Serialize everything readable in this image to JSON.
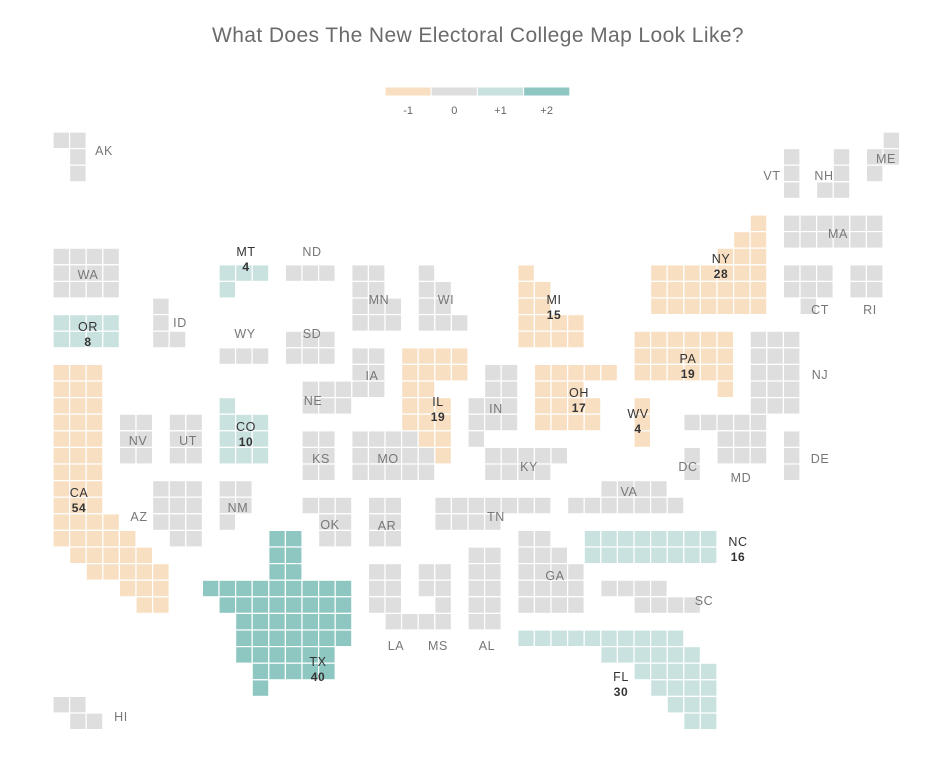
{
  "title": "What Does The New Electoral College Map Look Like?",
  "colors": {
    "-1": "#f9dfc2",
    "0": "#dedede",
    "1": "#c9e2e0",
    "2": "#8ec6c1"
  },
  "legend": [
    {
      "value": -1,
      "label": "-1"
    },
    {
      "value": 0,
      "label": "0"
    },
    {
      "value": 1,
      "label": "+1"
    },
    {
      "value": 2,
      "label": "+2"
    }
  ],
  "states": [
    {
      "abbr": "AK",
      "change": 0
    },
    {
      "abbr": "HI",
      "change": 0
    },
    {
      "abbr": "WA",
      "change": 0
    },
    {
      "abbr": "OR",
      "change": 1,
      "votes": "8"
    },
    {
      "abbr": "CA",
      "change": -1,
      "votes": "54"
    },
    {
      "abbr": "ID",
      "change": 0
    },
    {
      "abbr": "NV",
      "change": 0
    },
    {
      "abbr": "UT",
      "change": 0
    },
    {
      "abbr": "AZ",
      "change": 0
    },
    {
      "abbr": "MT",
      "change": 1,
      "votes": "4"
    },
    {
      "abbr": "WY",
      "change": 0
    },
    {
      "abbr": "CO",
      "change": 1,
      "votes": "10"
    },
    {
      "abbr": "NM",
      "change": 0
    },
    {
      "abbr": "ND",
      "change": 0
    },
    {
      "abbr": "SD",
      "change": 0
    },
    {
      "abbr": "NE",
      "change": 0
    },
    {
      "abbr": "KS",
      "change": 0
    },
    {
      "abbr": "OK",
      "change": 0
    },
    {
      "abbr": "TX",
      "change": 2,
      "votes": "40"
    },
    {
      "abbr": "MN",
      "change": 0
    },
    {
      "abbr": "IA",
      "change": 0
    },
    {
      "abbr": "MO",
      "change": 0
    },
    {
      "abbr": "AR",
      "change": 0
    },
    {
      "abbr": "LA",
      "change": 0
    },
    {
      "abbr": "WI",
      "change": 0
    },
    {
      "abbr": "IL",
      "change": -1,
      "votes": "19"
    },
    {
      "abbr": "MS",
      "change": 0
    },
    {
      "abbr": "MI",
      "change": -1,
      "votes": "15"
    },
    {
      "abbr": "IN",
      "change": 0
    },
    {
      "abbr": "KY",
      "change": 0
    },
    {
      "abbr": "TN",
      "change": 0
    },
    {
      "abbr": "AL",
      "change": 0
    },
    {
      "abbr": "OH",
      "change": -1,
      "votes": "17"
    },
    {
      "abbr": "WV",
      "change": -1,
      "votes": "4"
    },
    {
      "abbr": "GA",
      "change": 0
    },
    {
      "abbr": "FL",
      "change": 1,
      "votes": "30"
    },
    {
      "abbr": "PA",
      "change": -1,
      "votes": "19"
    },
    {
      "abbr": "VA",
      "change": 0
    },
    {
      "abbr": "NC",
      "change": 1,
      "votes": "16"
    },
    {
      "abbr": "SC",
      "change": 0
    },
    {
      "abbr": "DC",
      "change": 0
    },
    {
      "abbr": "MD",
      "change": 0
    },
    {
      "abbr": "DE",
      "change": 0
    },
    {
      "abbr": "NJ",
      "change": 0
    },
    {
      "abbr": "NY",
      "change": -1,
      "votes": "28"
    },
    {
      "abbr": "CT",
      "change": 0
    },
    {
      "abbr": "RI",
      "change": 0
    },
    {
      "abbr": "MA",
      "change": 0
    },
    {
      "abbr": "VT",
      "change": 0
    },
    {
      "abbr": "NH",
      "change": 0
    },
    {
      "abbr": "ME",
      "change": 0
    }
  ]
}
